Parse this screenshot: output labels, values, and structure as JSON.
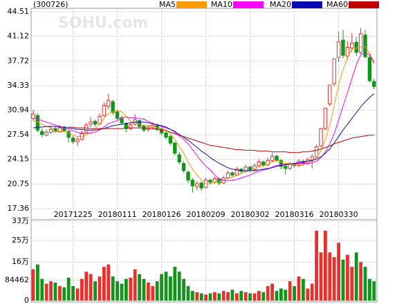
{
  "chart_data": {
    "type": "candlestick",
    "title": "(300726)",
    "watermark": "SOHU.com",
    "categories": [
      null,
      null,
      null,
      null,
      null,
      null,
      null,
      null,
      null,
      "20171225",
      null,
      null,
      null,
      null,
      null,
      null,
      null,
      null,
      null,
      "20180111",
      null,
      null,
      null,
      null,
      null,
      null,
      null,
      null,
      null,
      "20180126",
      null,
      null,
      null,
      null,
      null,
      null,
      null,
      null,
      null,
      "20180209",
      null,
      null,
      null,
      null,
      null,
      null,
      null,
      null,
      null,
      "20180302",
      null,
      null,
      null,
      null,
      null,
      null,
      null,
      null,
      null,
      "20180316",
      null,
      null,
      null,
      null,
      null,
      null,
      null,
      null,
      null,
      "20180330",
      null,
      null,
      null,
      null,
      null,
      null,
      null,
      null
    ],
    "ylim": [
      17.36,
      44.51
    ],
    "yticks": [
      44.51,
      41.12,
      37.72,
      34.33,
      30.94,
      27.54,
      24.15,
      20.75,
      17.36
    ],
    "grid": true,
    "up_color": "#e8312c",
    "down_color": "#13951b",
    "ohlc": [
      [
        29.8,
        31.0,
        29.5,
        30.4
      ],
      [
        30.2,
        30.5,
        27.9,
        28.2
      ],
      [
        28.0,
        28.4,
        27.2,
        27.6
      ],
      [
        27.5,
        28.3,
        27.3,
        27.9
      ],
      [
        27.9,
        28.8,
        27.7,
        28.3
      ],
      [
        28.4,
        28.7,
        27.8,
        28.0
      ],
      [
        28.0,
        28.9,
        27.9,
        28.5
      ],
      [
        28.6,
        28.8,
        27.9,
        28.1
      ],
      [
        28.0,
        28.2,
        26.5,
        27.2
      ],
      [
        27.1,
        27.4,
        26.3,
        26.6
      ],
      [
        26.6,
        27.3,
        26.0,
        26.9
      ],
      [
        26.9,
        28.1,
        26.8,
        27.8
      ],
      [
        27.9,
        29.2,
        27.7,
        28.9
      ],
      [
        29.0,
        30.0,
        28.6,
        29.3
      ],
      [
        29.4,
        29.6,
        28.7,
        29.0
      ],
      [
        29.1,
        30.5,
        28.9,
        30.1
      ],
      [
        30.2,
        32.0,
        30.0,
        31.6
      ],
      [
        31.5,
        33.2,
        31.1,
        32.3
      ],
      [
        32.1,
        32.4,
        30.3,
        30.6
      ],
      [
        30.7,
        31.0,
        29.5,
        29.8
      ],
      [
        29.9,
        30.2,
        28.9,
        29.2
      ],
      [
        29.1,
        29.3,
        27.9,
        28.4
      ],
      [
        28.4,
        29.3,
        28.2,
        28.9
      ],
      [
        29.0,
        30.4,
        28.8,
        29.6
      ],
      [
        29.5,
        29.7,
        28.4,
        28.7
      ],
      [
        28.8,
        29.0,
        27.9,
        28.2
      ],
      [
        28.3,
        28.9,
        28.0,
        28.6
      ],
      [
        28.6,
        29.3,
        28.3,
        28.9
      ],
      [
        28.9,
        29.1,
        28.0,
        28.3
      ],
      [
        28.4,
        28.6,
        27.5,
        27.8
      ],
      [
        27.8,
        28.0,
        26.9,
        27.2
      ],
      [
        27.3,
        27.5,
        26.1,
        26.4
      ],
      [
        26.4,
        26.6,
        24.7,
        25.0
      ],
      [
        24.8,
        25.2,
        23.5,
        23.8
      ],
      [
        23.6,
        23.9,
        22.3,
        22.6
      ],
      [
        22.4,
        22.6,
        20.9,
        21.3
      ],
      [
        21.3,
        21.6,
        19.6,
        20.5
      ],
      [
        20.4,
        21.2,
        19.9,
        20.8
      ],
      [
        20.9,
        21.1,
        19.8,
        20.2
      ],
      [
        20.3,
        21.6,
        20.1,
        21.3
      ],
      [
        21.3,
        21.5,
        20.7,
        21.0
      ],
      [
        21.0,
        21.8,
        20.8,
        21.5
      ],
      [
        21.5,
        21.6,
        20.6,
        20.9
      ],
      [
        20.9,
        21.9,
        20.8,
        21.6
      ],
      [
        21.6,
        22.6,
        21.4,
        22.3
      ],
      [
        22.3,
        22.5,
        21.7,
        22.0
      ],
      [
        22.0,
        23.1,
        21.9,
        22.8
      ],
      [
        22.8,
        23.0,
        22.2,
        22.5
      ],
      [
        22.5,
        23.4,
        22.3,
        23.1
      ],
      [
        23.1,
        23.3,
        22.4,
        22.7
      ],
      [
        22.7,
        23.6,
        22.5,
        23.3
      ],
      [
        23.3,
        24.2,
        23.1,
        23.8
      ],
      [
        23.8,
        24.0,
        23.1,
        23.4
      ],
      [
        23.4,
        24.4,
        23.2,
        24.0
      ],
      [
        24.0,
        25.1,
        23.8,
        24.6
      ],
      [
        24.6,
        24.8,
        23.8,
        24.0
      ],
      [
        24.0,
        24.2,
        22.8,
        23.2
      ],
      [
        23.2,
        23.4,
        22.1,
        22.9
      ],
      [
        22.9,
        23.8,
        22.7,
        23.5
      ],
      [
        23.5,
        23.7,
        23.0,
        23.3
      ],
      [
        23.3,
        24.2,
        23.1,
        23.9
      ],
      [
        23.9,
        24.1,
        23.3,
        23.6
      ],
      [
        23.6,
        24.4,
        23.4,
        24.1
      ],
      [
        24.1,
        24.9,
        22.9,
        24.5
      ],
      [
        24.5,
        26.2,
        24.3,
        25.9
      ],
      [
        26.0,
        28.5,
        25.8,
        28.4
      ],
      [
        28.4,
        31.2,
        28.2,
        31.2
      ],
      [
        31.8,
        34.4,
        31.5,
        34.4
      ],
      [
        34.6,
        38.0,
        34.2,
        38.0
      ],
      [
        38.2,
        41.8,
        37.6,
        40.4
      ],
      [
        40.6,
        42.0,
        38.1,
        38.5
      ],
      [
        38.4,
        40.5,
        37.9,
        39.6
      ],
      [
        39.5,
        41.6,
        39.0,
        40.2
      ],
      [
        40.3,
        41.0,
        38.4,
        38.9
      ],
      [
        38.9,
        42.3,
        38.7,
        41.5
      ],
      [
        41.3,
        42.0,
        38.1,
        38.3
      ],
      [
        38.2,
        38.5,
        34.8,
        35.0
      ],
      [
        34.9,
        35.3,
        33.8,
        34.2
      ]
    ],
    "series": [
      {
        "name": "MA5",
        "color": "#ff9900",
        "values": [
          29.5,
          29.3,
          29.0,
          28.7,
          28.5,
          28.0,
          27.9,
          28.0,
          27.8,
          27.5,
          27.3,
          27.3,
          27.5,
          27.9,
          28.4,
          29.0,
          29.8,
          30.5,
          30.7,
          30.9,
          30.7,
          30.1,
          29.4,
          29.2,
          29.0,
          28.8,
          28.8,
          28.8,
          28.5,
          28.4,
          28.2,
          27.7,
          26.9,
          25.9,
          25.0,
          23.8,
          22.8,
          22.0,
          21.3,
          20.8,
          20.8,
          21.0,
          21.0,
          21.3,
          21.5,
          21.7,
          21.9,
          22.2,
          22.5,
          22.6,
          22.9,
          23.1,
          23.3,
          23.4,
          23.8,
          24.0,
          23.8,
          23.6,
          23.6,
          23.4,
          23.4,
          23.4,
          23.7,
          23.9,
          24.4,
          25.3,
          26.9,
          28.9,
          31.6,
          34.5,
          36.5,
          38.2,
          39.3,
          39.5,
          39.7,
          39.7,
          38.8,
          37.6
        ]
      },
      {
        "name": "MA10",
        "color": "#ff00ff",
        "values": [
          29.8,
          29.7,
          29.5,
          29.3,
          29.1,
          28.9,
          28.7,
          28.5,
          28.3,
          28.1,
          27.9,
          27.7,
          27.7,
          27.8,
          27.9,
          28.2,
          28.6,
          29.1,
          29.3,
          29.5,
          29.9,
          30.0,
          29.9,
          29.9,
          29.8,
          29.7,
          29.4,
          29.1,
          28.9,
          28.7,
          28.5,
          28.3,
          27.9,
          27.4,
          26.9,
          26.3,
          25.5,
          24.7,
          23.9,
          23.2,
          22.7,
          22.0,
          21.5,
          21.3,
          21.2,
          21.3,
          21.4,
          21.6,
          21.8,
          22.0,
          22.3,
          22.5,
          22.7,
          22.8,
          23.1,
          23.3,
          23.4,
          23.5,
          23.5,
          23.6,
          23.6,
          23.6,
          23.6,
          23.7,
          23.9,
          24.4,
          25.2,
          26.3,
          27.7,
          29.6,
          31.5,
          33.4,
          35.3,
          37.2,
          38.6,
          38.8,
          38.6,
          37.4
        ]
      },
      {
        "name": "MA20",
        "color": "#0a0ab4",
        "values": [
          28.5,
          28.6,
          28.6,
          28.7,
          28.7,
          28.7,
          28.6,
          28.6,
          28.5,
          28.4,
          28.3,
          28.3,
          28.2,
          28.2,
          28.2,
          28.3,
          28.4,
          28.6,
          28.8,
          28.9,
          29.0,
          29.1,
          29.2,
          29.3,
          29.3,
          29.3,
          29.2,
          29.1,
          28.9,
          28.8,
          28.6,
          28.3,
          28.0,
          27.6,
          27.2,
          26.8,
          26.3,
          25.8,
          25.3,
          24.9,
          24.4,
          24.0,
          23.6,
          23.3,
          23.0,
          22.8,
          22.7,
          22.6,
          22.6,
          22.6,
          22.6,
          22.7,
          22.8,
          22.9,
          23.0,
          23.2,
          23.3,
          23.4,
          23.5,
          23.6,
          23.7,
          23.8,
          23.9,
          24.0,
          24.2,
          24.5,
          25.0,
          25.6,
          26.4,
          27.3,
          28.2,
          29.0,
          29.8,
          30.6,
          31.4,
          32.1,
          32.7,
          33.2
        ]
      },
      {
        "name": "MA60",
        "color": "#c00000",
        "values": [
          null,
          null,
          null,
          null,
          null,
          null,
          null,
          null,
          28.6,
          28.6,
          28.5,
          28.5,
          28.5,
          28.4,
          28.4,
          28.4,
          28.4,
          28.4,
          28.4,
          28.4,
          28.4,
          28.5,
          28.5,
          28.5,
          28.5,
          28.5,
          28.4,
          28.4,
          28.3,
          28.2,
          28.1,
          27.9,
          27.7,
          27.5,
          27.3,
          27.1,
          26.9,
          26.7,
          26.5,
          26.3,
          26.1,
          26.0,
          25.9,
          25.8,
          25.7,
          25.6,
          25.5,
          25.5,
          25.4,
          25.4,
          25.4,
          25.3,
          25.3,
          25.3,
          25.2,
          25.2,
          25.2,
          25.2,
          25.1,
          25.1,
          25.1,
          25.2,
          25.2,
          25.3,
          25.4,
          25.6,
          25.8,
          26.0,
          26.3,
          26.5,
          26.7,
          26.9,
          27.1,
          27.2,
          27.3,
          27.4,
          27.5,
          27.5
        ]
      }
    ],
    "volume": {
      "ylim": [
        0,
        330000
      ],
      "yticks": [
        {
          "value": 330000,
          "label": "33万"
        },
        {
          "value": 250000,
          "label": "25万"
        },
        {
          "value": 160000,
          "label": "16万"
        },
        84462,
        0
      ],
      "values": [
        130000,
        150000,
        90000,
        70000,
        80000,
        75000,
        60000,
        55000,
        95000,
        60000,
        50000,
        90000,
        120000,
        110000,
        80000,
        100000,
        140000,
        150000,
        100000,
        80000,
        70000,
        90000,
        95000,
        130000,
        110000,
        90000,
        75000,
        60000,
        80000,
        110000,
        120000,
        100000,
        140000,
        120000,
        90000,
        60000,
        40000,
        35000,
        30000,
        25000,
        30000,
        35000,
        30000,
        40000,
        35000,
        45000,
        30000,
        40000,
        35000,
        30000,
        30000,
        40000,
        35000,
        60000,
        70000,
        40000,
        50000,
        45000,
        80000,
        60000,
        100000,
        90000,
        50000,
        70000,
        290000,
        200000,
        290000,
        200000,
        180000,
        240000,
        170000,
        190000,
        140000,
        200000,
        160000,
        140000,
        90000,
        80000
      ]
    }
  }
}
